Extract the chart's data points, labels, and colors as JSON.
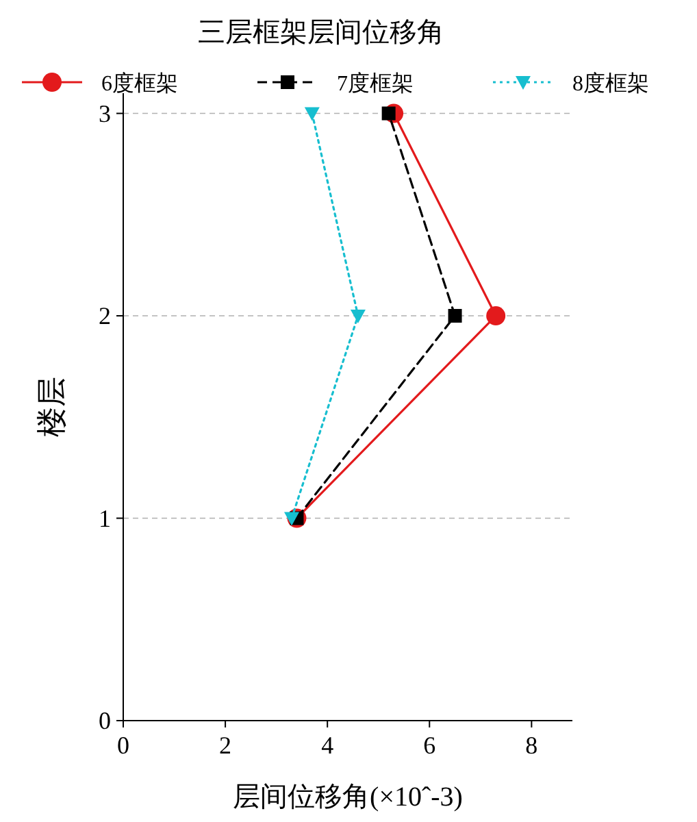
{
  "chart_data": {
    "type": "line",
    "title": "三层框架层间位移角",
    "xlabel": "层间位移角(×10ˆ-3)",
    "ylabel": "楼层",
    "xlim": [
      0,
      8.8
    ],
    "xticks": [
      0,
      2,
      4,
      6,
      8
    ],
    "ylim": [
      0,
      3.1
    ],
    "yticks": [
      0,
      1,
      2,
      3
    ],
    "grid": "y",
    "legend": "top",
    "series": [
      {
        "name": "6度框架",
        "color": "#e31a1c",
        "x": [
          3.4,
          7.3,
          5.3
        ],
        "values": [
          1,
          2,
          3
        ],
        "marker": "circle",
        "line_style": "solid"
      },
      {
        "name": "7度框架",
        "color": "#000000",
        "x": [
          3.4,
          6.5,
          5.2
        ],
        "values": [
          1,
          2,
          3
        ],
        "marker": "square",
        "line_style": "dashed"
      },
      {
        "name": "8度框架",
        "color": "#17becf",
        "x": [
          3.3,
          4.6,
          3.7
        ],
        "values": [
          1,
          2,
          3
        ],
        "marker": "triangle",
        "line_style": "dotted"
      }
    ]
  }
}
